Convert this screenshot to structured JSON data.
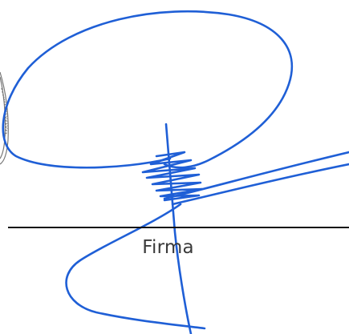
{
  "signature_field": {
    "label": "Firma"
  },
  "colors": {
    "ink": "#1f5fd6",
    "line": "#111111",
    "label": "#3a3a3a",
    "stamp": "#555555"
  }
}
